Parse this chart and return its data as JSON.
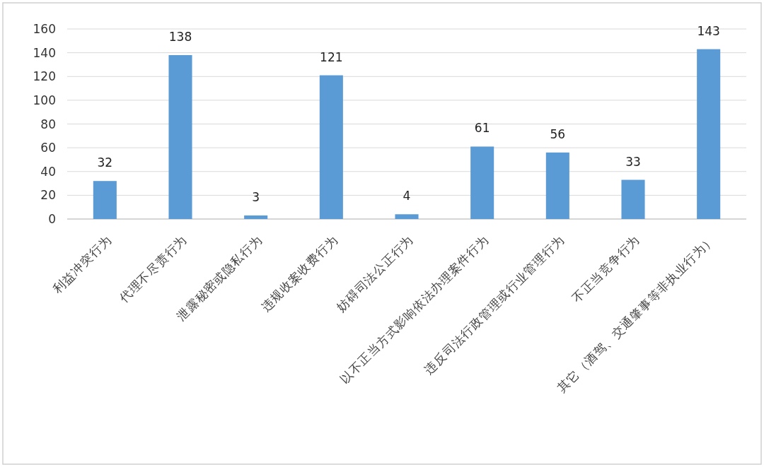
{
  "chart_data": {
    "type": "bar",
    "categories": [
      "利益冲突行为",
      "代理不尽责行为",
      "泄露秘密或隐私行为",
      "违规收案收费行为",
      "妨碍司法公正行为",
      "以不正当方式影响依法办理案件行为",
      "违反司法行政管理或行业管理行为",
      "不正当竞争行为",
      "其它（酒驾、交通肇事等非执业行为）"
    ],
    "values": [
      32,
      138,
      3,
      121,
      4,
      61,
      56,
      33,
      143
    ],
    "color": "#5b9bd5",
    "ylim": [
      0,
      160
    ],
    "yticks": [
      0,
      20,
      40,
      60,
      80,
      100,
      120,
      140,
      160
    ],
    "grid": "y",
    "data_labels": true
  }
}
